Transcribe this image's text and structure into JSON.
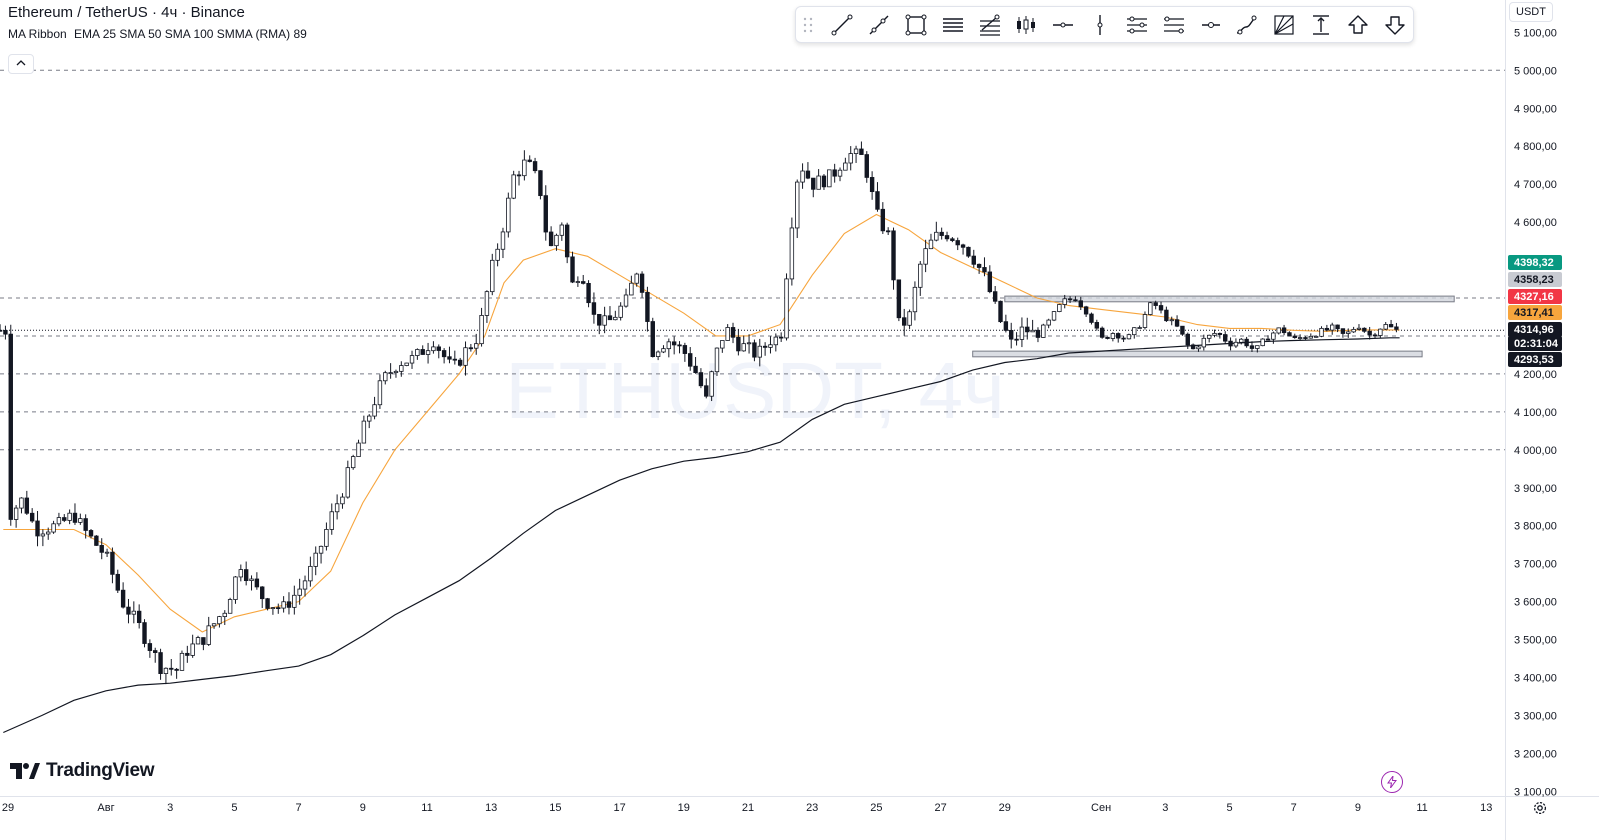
{
  "header": {
    "symbol_title": "Ethereum / TetherUS · 4ч · Binance",
    "indicator_name": "MA Ribbon",
    "indicator_params": "EMA 25 SMA 50 SMA 100 SMMA (RMA) 89",
    "collapse_label": "^"
  },
  "watermark_text": "ETHUSDT, 4ч",
  "currency_label": "USDT",
  "logo_text": "TradingView",
  "toolbar": {
    "tools": [
      {
        "name": "trend-line-tool",
        "icon": "trend-line-icon"
      },
      {
        "name": "ray-tool",
        "icon": "ray-icon"
      },
      {
        "name": "rectangle-tool",
        "icon": "rectangle-icon"
      },
      {
        "name": "parallel-channel-tool",
        "icon": "parallel-channel-icon"
      },
      {
        "name": "fib-retracement-tool",
        "icon": "fib-retracement-icon"
      },
      {
        "name": "candles-tool",
        "icon": "candles-icon"
      },
      {
        "name": "horizontal-line-tool",
        "icon": "horizontal-line-icon"
      },
      {
        "name": "vertical-line-tool",
        "icon": "vertical-line-icon"
      },
      {
        "name": "pitchfork-tool",
        "icon": "pitchfork-icon"
      },
      {
        "name": "regression-trend-tool",
        "icon": "regression-trend-icon"
      },
      {
        "name": "horizontal-ray-tool",
        "icon": "horizontal-ray-icon"
      },
      {
        "name": "brush-tool",
        "icon": "brush-icon"
      },
      {
        "name": "gann-fan-tool",
        "icon": "gann-fan-icon"
      },
      {
        "name": "price-range-tool",
        "icon": "price-range-icon"
      },
      {
        "name": "arrow-up-tool",
        "icon": "arrow-up-icon"
      },
      {
        "name": "arrow-down-tool",
        "icon": "arrow-down-icon"
      }
    ]
  },
  "chart_data": {
    "type": "candlestick",
    "symbol": "ETHUSDT",
    "interval": "4ч",
    "ylim": [
      3060,
      5165
    ],
    "price_ticks": [
      "5 100,00",
      "5 000,00",
      "4 900,00",
      "4 800,00",
      "4 700,00",
      "4 600,00",
      "4 200,00",
      "4 100,00",
      "4 000,00",
      "3 900,00",
      "3 800,00",
      "3 700,00",
      "3 600,00",
      "3 500,00",
      "3 400,00",
      "3 300,00",
      "3 200,00",
      "3 100,00"
    ],
    "price_tick_values": [
      5100,
      5000,
      4900,
      4800,
      4700,
      4600,
      4200,
      4100,
      4000,
      3900,
      3800,
      3700,
      3600,
      3500,
      3400,
      3300,
      3200,
      3100
    ],
    "price_tags": [
      {
        "label": "4398,32",
        "value": 4398.32,
        "color": "#089981",
        "text_color": "#ffffff"
      },
      {
        "label": "4358,23",
        "value": 4358.23,
        "color": "#c8cbd2",
        "text_color": "#131722"
      },
      {
        "label": "4327,16",
        "value": 4327.16,
        "color": "#f23645",
        "text_color": "#ffffff"
      },
      {
        "label": "4317,41",
        "value": 4317.41,
        "color": "#f7a53d",
        "text_color": "#131722"
      },
      {
        "label": "4314,96",
        "value": 4314.96,
        "color": "#131722",
        "text_color": "#ffffff"
      },
      {
        "label": "02:31:04",
        "value": 4283,
        "color": "#131722",
        "text_color": "#ffffff"
      },
      {
        "label": "4293,53",
        "value": 4293.53,
        "color": "#131722",
        "text_color": "#ffffff"
      }
    ],
    "horizontal_levels": [
      5000,
      4400,
      4300,
      4200,
      4100,
      4000
    ],
    "current_price": 4314.96,
    "time_labels": [
      "29",
      "Авг",
      "3",
      "5",
      "7",
      "9",
      "11",
      "13",
      "15",
      "17",
      "19",
      "21",
      "23",
      "25",
      "27",
      "29",
      "Сен",
      "3",
      "5",
      "7",
      "9",
      "11",
      "13"
    ],
    "time_label_days": [
      -3,
      0,
      2,
      4,
      6,
      8,
      10,
      12,
      14,
      16,
      18,
      20,
      22,
      24,
      26,
      28,
      31,
      33,
      35,
      37,
      39,
      41,
      43
    ],
    "waypoints": [
      [
        -3.1,
        3820
      ],
      [
        -2.6,
        3870
      ],
      [
        -2.2,
        3790
      ],
      [
        -1.5,
        3800
      ],
      [
        -1.0,
        3830
      ],
      [
        -0.7,
        3790
      ],
      [
        0.0,
        3720
      ],
      [
        0.5,
        3600
      ],
      [
        1.0,
        3540
      ],
      [
        1.7,
        3430
      ],
      [
        2.2,
        3420
      ],
      [
        2.5,
        3470
      ],
      [
        3.0,
        3500
      ],
      [
        3.7,
        3580
      ],
      [
        4.2,
        3700
      ],
      [
        4.6,
        3640
      ],
      [
        5.0,
        3600
      ],
      [
        5.5,
        3580
      ],
      [
        6.0,
        3630
      ],
      [
        6.5,
        3700
      ],
      [
        7.0,
        3820
      ],
      [
        7.4,
        3900
      ],
      [
        8.0,
        4050
      ],
      [
        8.6,
        4180
      ],
      [
        9.1,
        4230
      ],
      [
        9.6,
        4240
      ],
      [
        10.2,
        4290
      ],
      [
        10.8,
        4210
      ],
      [
        11.2,
        4260
      ],
      [
        11.6,
        4300
      ],
      [
        12.0,
        4470
      ],
      [
        12.4,
        4600
      ],
      [
        12.7,
        4720
      ],
      [
        13.1,
        4760
      ],
      [
        13.5,
        4700
      ],
      [
        13.8,
        4520
      ],
      [
        14.2,
        4600
      ],
      [
        14.5,
        4430
      ],
      [
        14.8,
        4480
      ],
      [
        15.2,
        4350
      ],
      [
        15.6,
        4330
      ],
      [
        16.2,
        4390
      ],
      [
        16.6,
        4490
      ],
      [
        17.0,
        4260
      ],
      [
        17.5,
        4290
      ],
      [
        18.0,
        4260
      ],
      [
        18.4,
        4200
      ],
      [
        18.7,
        4130
      ],
      [
        19.0,
        4250
      ],
      [
        19.3,
        4320
      ],
      [
        19.7,
        4280
      ],
      [
        20.3,
        4250
      ],
      [
        20.8,
        4300
      ],
      [
        21.0,
        4280
      ],
      [
        21.3,
        4560
      ],
      [
        21.6,
        4760
      ],
      [
        22.0,
        4700
      ],
      [
        22.6,
        4720
      ],
      [
        23.1,
        4780
      ],
      [
        23.6,
        4770
      ],
      [
        24.0,
        4620
      ],
      [
        24.4,
        4560
      ],
      [
        24.7,
        4330
      ],
      [
        25.0,
        4340
      ],
      [
        25.4,
        4500
      ],
      [
        25.8,
        4560
      ],
      [
        26.2,
        4570
      ],
      [
        26.6,
        4550
      ],
      [
        27.0,
        4510
      ],
      [
        27.4,
        4450
      ],
      [
        27.8,
        4350
      ],
      [
        28.2,
        4280
      ],
      [
        28.6,
        4320
      ],
      [
        29.0,
        4300
      ],
      [
        29.4,
        4340
      ],
      [
        29.8,
        4390
      ],
      [
        30.2,
        4400
      ],
      [
        30.6,
        4360
      ],
      [
        31.0,
        4290
      ],
      [
        31.4,
        4310
      ],
      [
        31.8,
        4290
      ],
      [
        32.2,
        4330
      ],
      [
        32.6,
        4390
      ],
      [
        33.0,
        4350
      ],
      [
        33.4,
        4320
      ],
      [
        33.8,
        4260
      ],
      [
        34.2,
        4290
      ],
      [
        34.6,
        4310
      ],
      [
        35.0,
        4280
      ],
      [
        35.4,
        4290
      ],
      [
        35.8,
        4260
      ],
      [
        36.2,
        4300
      ],
      [
        36.6,
        4320
      ],
      [
        37.0,
        4290
      ],
      [
        37.4,
        4300
      ],
      [
        37.8,
        4310
      ],
      [
        38.2,
        4320
      ],
      [
        38.6,
        4300
      ],
      [
        39.0,
        4330
      ],
      [
        39.4,
        4300
      ],
      [
        39.8,
        4330
      ],
      [
        40.2,
        4315
      ]
    ],
    "ema25_waypoints": [
      [
        -3.2,
        3790
      ],
      [
        -1.0,
        3790
      ],
      [
        0.0,
        3750
      ],
      [
        1.0,
        3670
      ],
      [
        2.0,
        3580
      ],
      [
        3.0,
        3520
      ],
      [
        4.0,
        3560
      ],
      [
        5.0,
        3580
      ],
      [
        6.0,
        3600
      ],
      [
        7.0,
        3680
      ],
      [
        8.0,
        3860
      ],
      [
        9.0,
        4000
      ],
      [
        10.0,
        4100
      ],
      [
        11.0,
        4200
      ],
      [
        11.8,
        4300
      ],
      [
        12.4,
        4440
      ],
      [
        13.0,
        4500
      ],
      [
        14.0,
        4530
      ],
      [
        15.0,
        4510
      ],
      [
        16.0,
        4460
      ],
      [
        17.0,
        4410
      ],
      [
        18.0,
        4360
      ],
      [
        19.0,
        4300
      ],
      [
        20.0,
        4300
      ],
      [
        21.0,
        4330
      ],
      [
        22.0,
        4460
      ],
      [
        23.0,
        4570
      ],
      [
        24.0,
        4620
      ],
      [
        25.0,
        4580
      ],
      [
        26.0,
        4520
      ],
      [
        27.0,
        4480
      ],
      [
        28.0,
        4440
      ],
      [
        29.0,
        4400
      ],
      [
        30.0,
        4380
      ],
      [
        31.0,
        4370
      ],
      [
        32.0,
        4360
      ],
      [
        33.0,
        4350
      ],
      [
        34.0,
        4330
      ],
      [
        35.0,
        4320
      ],
      [
        36.0,
        4320
      ],
      [
        37.0,
        4315
      ],
      [
        38.0,
        4312
      ],
      [
        39.0,
        4316
      ],
      [
        40.0,
        4316
      ],
      [
        40.3,
        4316
      ]
    ],
    "smma89_waypoints": [
      [
        -3.2,
        3255
      ],
      [
        -2.0,
        3300
      ],
      [
        -1.0,
        3340
      ],
      [
        0.0,
        3365
      ],
      [
        1.0,
        3380
      ],
      [
        2.0,
        3385
      ],
      [
        3.0,
        3395
      ],
      [
        4.0,
        3405
      ],
      [
        5.0,
        3418
      ],
      [
        6.0,
        3430
      ],
      [
        7.0,
        3460
      ],
      [
        8.0,
        3510
      ],
      [
        9.0,
        3565
      ],
      [
        10.0,
        3610
      ],
      [
        11.0,
        3655
      ],
      [
        12.0,
        3715
      ],
      [
        13.0,
        3780
      ],
      [
        14.0,
        3840
      ],
      [
        15.0,
        3880
      ],
      [
        16.0,
        3920
      ],
      [
        17.0,
        3950
      ],
      [
        18.0,
        3970
      ],
      [
        19.0,
        3980
      ],
      [
        20.0,
        3995
      ],
      [
        21.0,
        4020
      ],
      [
        22.0,
        4080
      ],
      [
        23.0,
        4120
      ],
      [
        24.0,
        4140
      ],
      [
        25.0,
        4160
      ],
      [
        26.0,
        4180
      ],
      [
        27.0,
        4210
      ],
      [
        28.0,
        4230
      ],
      [
        29.0,
        4240
      ],
      [
        30.0,
        4255
      ],
      [
        31.0,
        4260
      ],
      [
        32.0,
        4265
      ],
      [
        33.0,
        4270
      ],
      [
        34.0,
        4275
      ],
      [
        35.0,
        4280
      ],
      [
        36.0,
        4285
      ],
      [
        37.0,
        4288
      ],
      [
        38.0,
        4290
      ],
      [
        39.0,
        4292
      ],
      [
        40.0,
        4295
      ],
      [
        40.3,
        4295
      ]
    ],
    "rectangles": [
      {
        "day_start": 28.0,
        "day_end": 42.0,
        "price_top": 4405,
        "price_bottom": 4390
      },
      {
        "day_start": 27.0,
        "day_end": 41.0,
        "price_top": 4260,
        "price_bottom": 4245
      }
    ],
    "colors": {
      "up": "#ffffff",
      "down": "#131722",
      "wick": "#131722",
      "ema25": "#f7a53d",
      "smma89": "#131722",
      "grid_dash": "#787b86"
    }
  }
}
